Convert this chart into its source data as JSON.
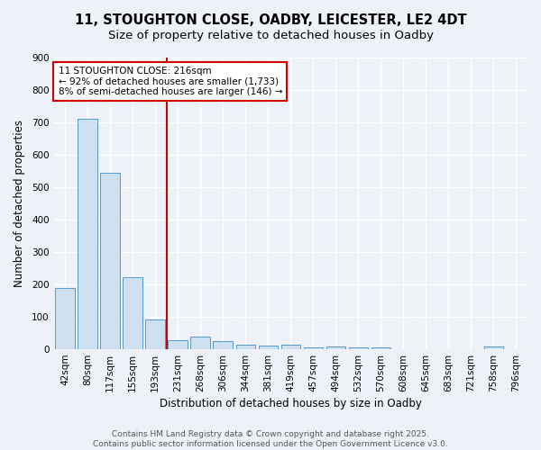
{
  "title_line1": "11, STOUGHTON CLOSE, OADBY, LEICESTER, LE2 4DT",
  "title_line2": "Size of property relative to detached houses in Oadby",
  "xlabel": "Distribution of detached houses by size in Oadby",
  "ylabel": "Number of detached properties",
  "categories": [
    "42sqm",
    "80sqm",
    "117sqm",
    "155sqm",
    "193sqm",
    "231sqm",
    "268sqm",
    "306sqm",
    "344sqm",
    "381sqm",
    "419sqm",
    "457sqm",
    "494sqm",
    "532sqm",
    "570sqm",
    "608sqm",
    "645sqm",
    "683sqm",
    "721sqm",
    "758sqm",
    "796sqm"
  ],
  "values": [
    190,
    710,
    545,
    222,
    93,
    28,
    40,
    25,
    13,
    12,
    13,
    7,
    9,
    5,
    5,
    0,
    0,
    0,
    0,
    8,
    0
  ],
  "bar_color": "#cce0f0",
  "bar_edge_color": "#5599cc",
  "vline_color": "#cc0000",
  "annotation_line1": "11 STOUGHTON CLOSE: 216sqm",
  "annotation_line2": "← 92% of detached houses are smaller (1,733)",
  "annotation_line3": "8% of semi-detached houses are larger (146) →",
  "annotation_box_color": "#ffffff",
  "annotation_box_edge_color": "#cc0000",
  "ylim": [
    0,
    900
  ],
  "yticks": [
    0,
    100,
    200,
    300,
    400,
    500,
    600,
    700,
    800,
    900
  ],
  "footer_line1": "Contains HM Land Registry data © Crown copyright and database right 2025.",
  "footer_line2": "Contains public sector information licensed under the Open Government Licence v3.0.",
  "bg_color": "#eef2f8",
  "grid_color": "#ffffff",
  "title1_fontsize": 10.5,
  "title2_fontsize": 9.5,
  "axis_label_fontsize": 8.5,
  "tick_fontsize": 7.5,
  "annotation_fontsize": 7.5,
  "footer_fontsize": 6.5
}
